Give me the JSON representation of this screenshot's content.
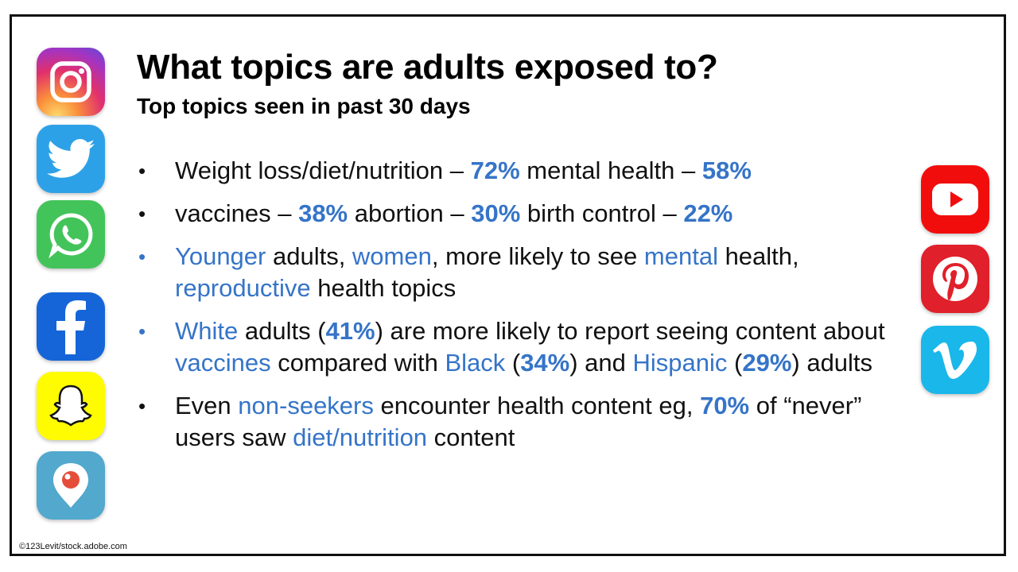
{
  "slide": {
    "title": "What topics are adults exposed to?",
    "subtitle": "Top topics seen in past 30 days",
    "credit": "©123Levit/stock.adobe.com"
  },
  "bullets": [
    {
      "marker": "•",
      "marker_color": "#111111",
      "segments": [
        {
          "text": "Weight loss/diet/nutrition – ",
          "style": "plain"
        },
        {
          "text": "72%",
          "style": "bold-blue"
        },
        {
          "text": " mental health – ",
          "style": "plain"
        },
        {
          "text": "58%",
          "style": "bold-blue"
        }
      ]
    },
    {
      "marker": "•",
      "marker_color": "#111111",
      "segments": [
        {
          "text": "vaccines – ",
          "style": "plain"
        },
        {
          "text": "38%",
          "style": "bold-blue"
        },
        {
          "text": " abortion – ",
          "style": "plain"
        },
        {
          "text": "30%",
          "style": "bold-blue"
        },
        {
          "text": " birth control – ",
          "style": "plain"
        },
        {
          "text": "22%",
          "style": "bold-blue"
        }
      ]
    },
    {
      "marker": "•",
      "marker_color": "#3574c8",
      "segments": [
        {
          "text": "Younger",
          "style": "blue"
        },
        {
          "text": " adults, ",
          "style": "plain"
        },
        {
          "text": "women",
          "style": "blue"
        },
        {
          "text": ", more likely to see ",
          "style": "plain"
        },
        {
          "text": "mental",
          "style": "blue"
        },
        {
          "text": " health, ",
          "style": "plain"
        },
        {
          "text": "reproductive",
          "style": "blue"
        },
        {
          "text": " health topics",
          "style": "plain"
        }
      ]
    },
    {
      "marker": "•",
      "marker_color": "#3574c8",
      "segments": [
        {
          "text": "White",
          "style": "blue"
        },
        {
          "text": " adults (",
          "style": "plain"
        },
        {
          "text": "41%",
          "style": "bold-blue"
        },
        {
          "text": ") are more likely to report seeing content about ",
          "style": "plain"
        },
        {
          "text": "vaccines",
          "style": "blue"
        },
        {
          "text": " compared with ",
          "style": "plain"
        },
        {
          "text": "Black",
          "style": "blue"
        },
        {
          "text": " (",
          "style": "plain"
        },
        {
          "text": "34%",
          "style": "bold-blue"
        },
        {
          "text": ") and ",
          "style": "plain"
        },
        {
          "text": "Hispanic",
          "style": "blue"
        },
        {
          "text": " (",
          "style": "plain"
        },
        {
          "text": "29%",
          "style": "bold-blue"
        },
        {
          "text": ") adults",
          "style": "plain"
        }
      ]
    },
    {
      "marker": "•",
      "marker_color": "#111111",
      "segments": [
        {
          "text": "Even ",
          "style": "plain"
        },
        {
          "text": "non-seekers",
          "style": "blue"
        },
        {
          "text": " encounter health content eg, ",
          "style": "plain"
        },
        {
          "text": "70%",
          "style": "bold-blue"
        },
        {
          "text": " of “never” users saw ",
          "style": "plain"
        },
        {
          "text": "diet/nutrition",
          "style": "blue"
        },
        {
          "text": " content",
          "style": "plain"
        }
      ]
    }
  ],
  "icons": {
    "left": [
      "instagram-icon",
      "twitter-icon",
      "whatsapp-icon",
      "facebook-icon",
      "snapchat-icon",
      "periscope-icon"
    ],
    "right": [
      "youtube-icon",
      "pinterest-icon",
      "vimeo-icon"
    ]
  },
  "colors": {
    "accent_blue": "#3574c8"
  }
}
